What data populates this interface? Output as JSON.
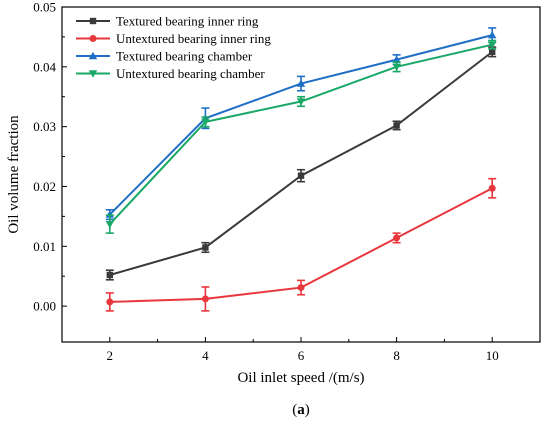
{
  "chart_data": {
    "type": "line",
    "xlabel": "Oil inlet speed /(m/s)",
    "ylabel": "Oil volume fraction",
    "x": [
      2,
      4,
      6,
      8,
      10
    ],
    "xticks": [
      "2",
      "4",
      "6",
      "8",
      "10"
    ],
    "xlim": [
      1,
      11
    ],
    "ylim": [
      -0.006,
      0.05
    ],
    "yticks": [
      "0.00",
      "0.01",
      "0.02",
      "0.03",
      "0.04",
      "0.05"
    ],
    "legend_position": "top-left",
    "caption_prefix": "(",
    "caption_letter": "a",
    "caption_suffix": ")",
    "series": [
      {
        "name": "Textured bearing inner ring",
        "color": "#3a3a3a",
        "marker": "square",
        "values": [
          0.0052,
          0.0098,
          0.0218,
          0.0302,
          0.0425
        ],
        "errors": [
          0.0008,
          0.0008,
          0.001,
          0.0007,
          0.0008
        ]
      },
      {
        "name": "Untextured bearing inner ring",
        "color": "#e8373c",
        "marker": "circle",
        "values": [
          0.0007,
          0.0012,
          0.0031,
          0.0114,
          0.0197
        ],
        "errors": [
          0.0015,
          0.002,
          0.0012,
          0.0008,
          0.0016
        ]
      },
      {
        "name": "Textured bearing chamber",
        "color": "#1f6fc6",
        "marker": "triangle-up",
        "values": [
          0.0153,
          0.0314,
          0.0372,
          0.0412,
          0.0453
        ],
        "errors": [
          0.0008,
          0.0017,
          0.0012,
          0.0008,
          0.0012
        ]
      },
      {
        "name": "Untextured bearing chamber",
        "color": "#19a866",
        "marker": "triangle-down",
        "values": [
          0.0137,
          0.0308,
          0.0342,
          0.04,
          0.0437
        ],
        "errors": [
          0.0015,
          0.0008,
          0.0008,
          0.0008,
          0.0007
        ]
      }
    ]
  }
}
